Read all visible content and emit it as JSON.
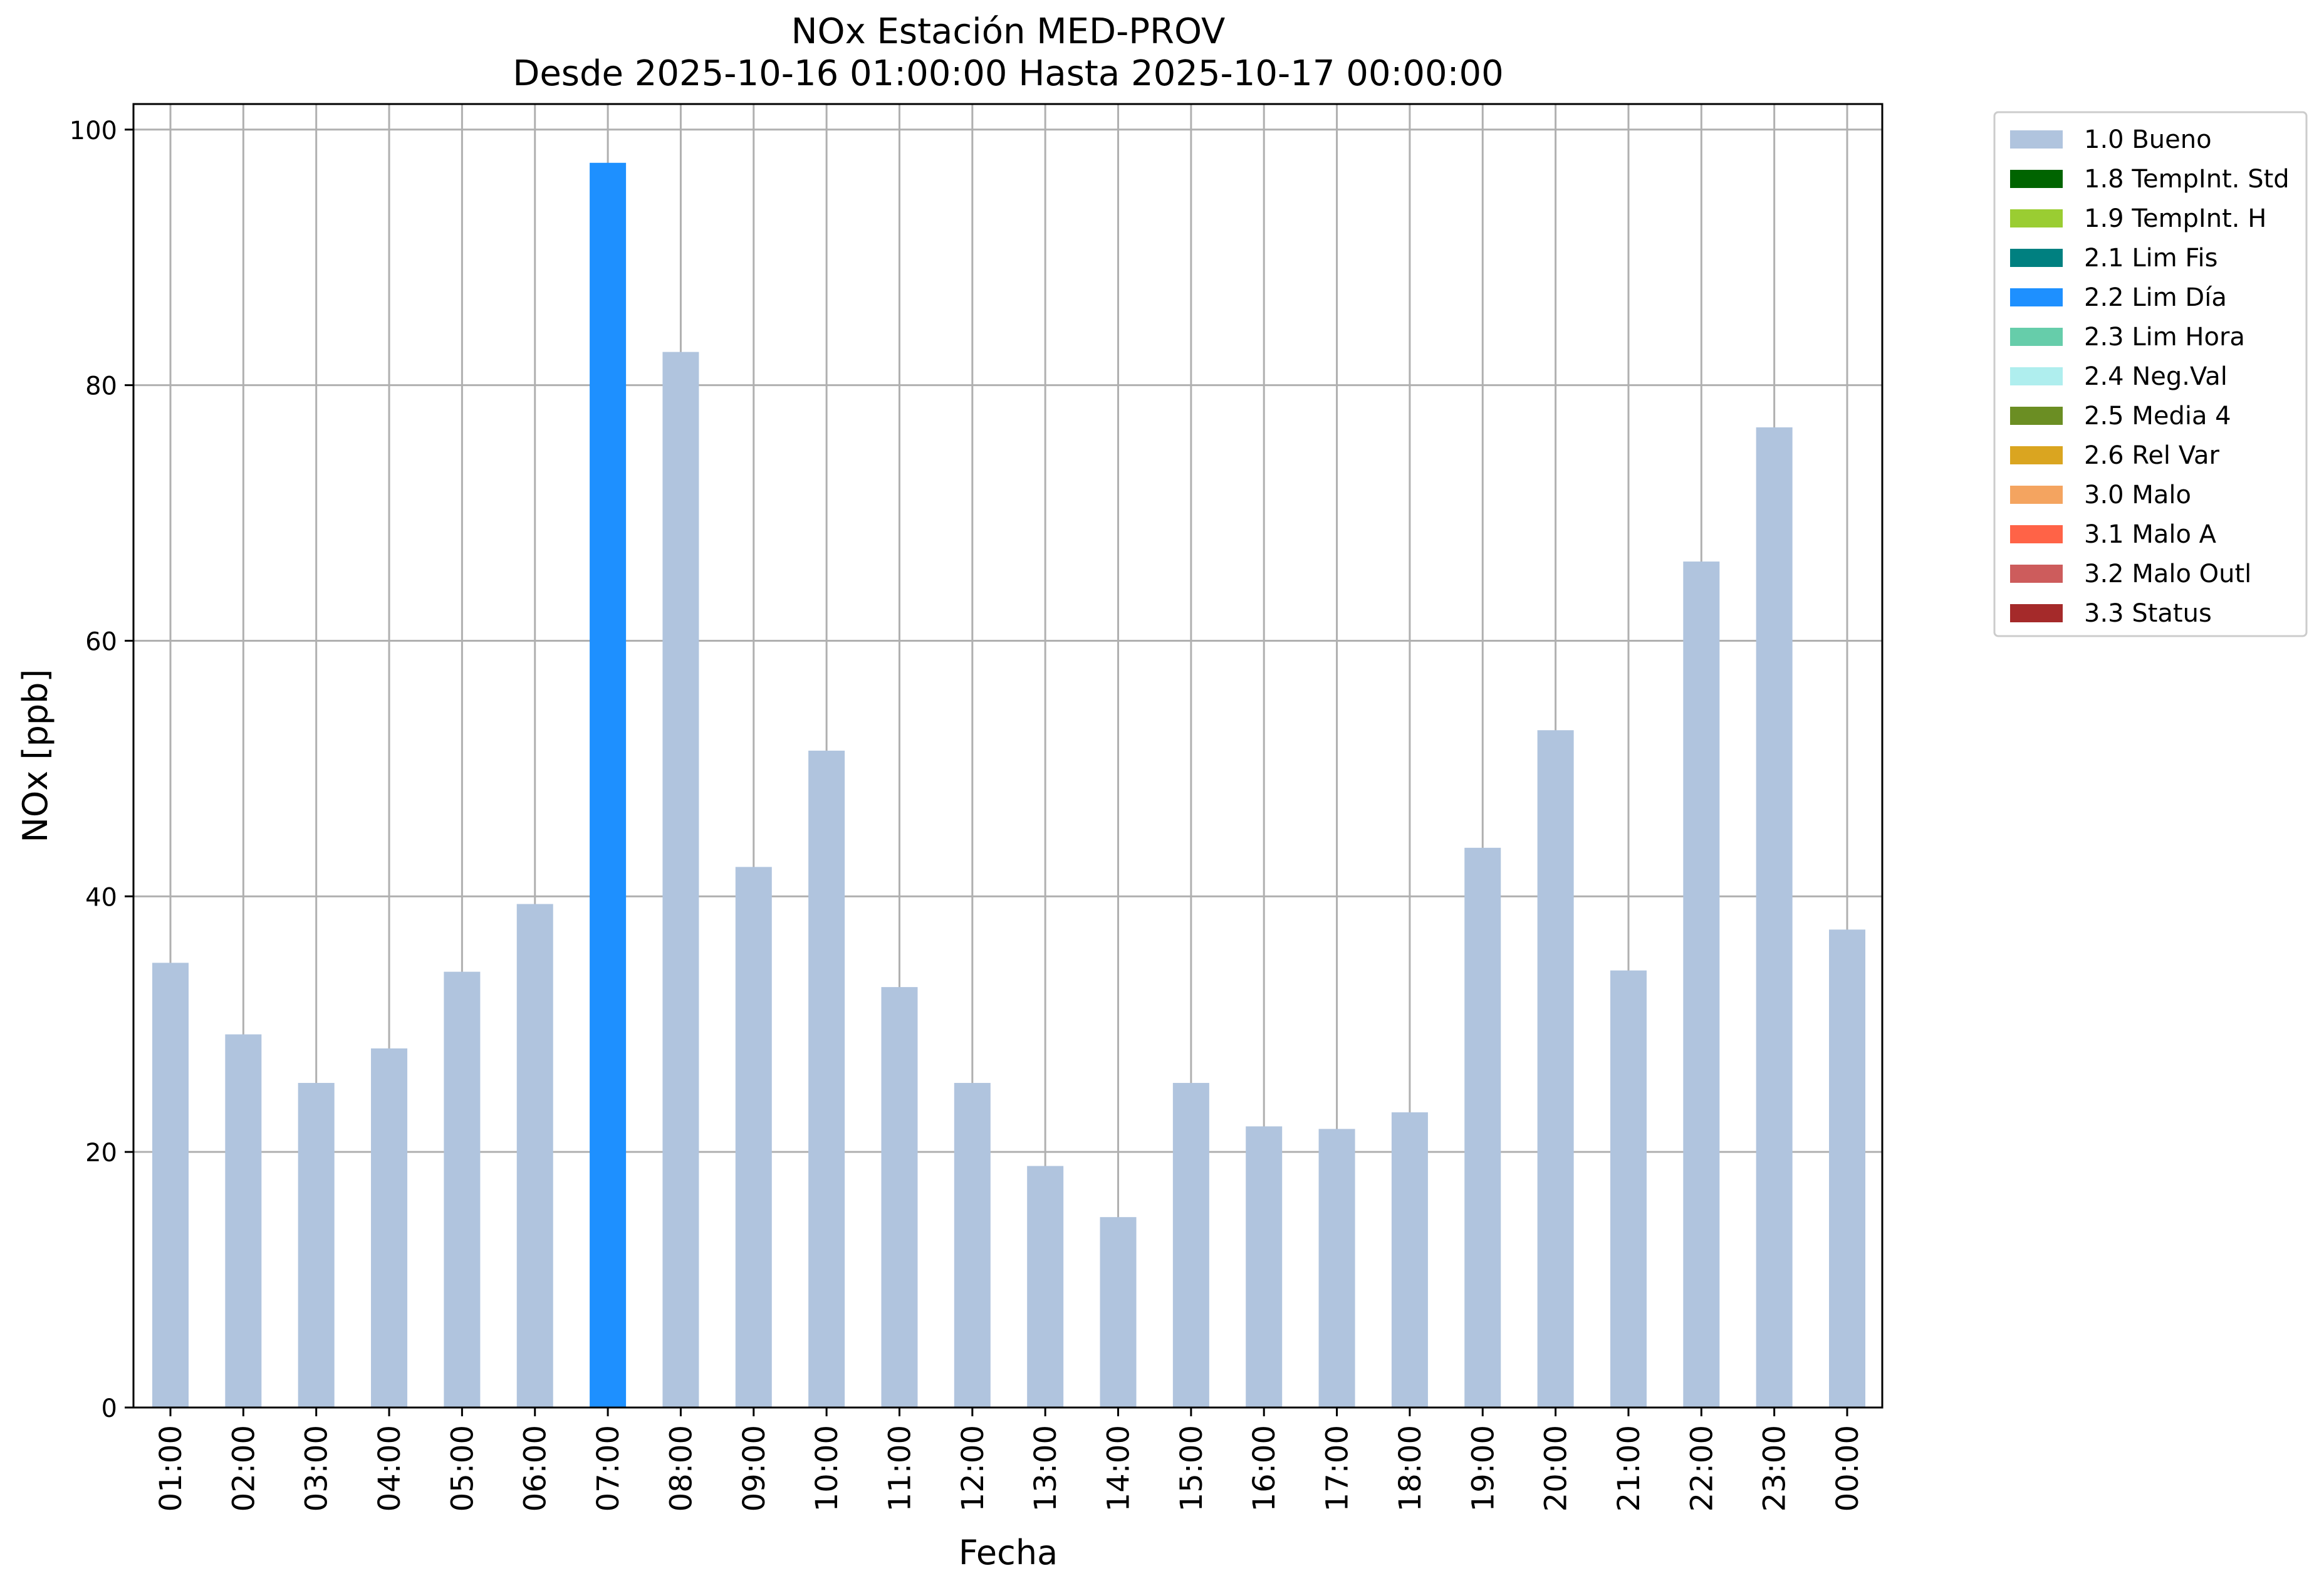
{
  "chart_data": {
    "type": "bar",
    "title": "NOx Estación MED-PROV",
    "subtitle": "Desde 2025-10-16 01:00:00 Hasta 2025-10-17 00:00:00",
    "xlabel": "Fecha",
    "ylabel": "NOx [ppb]",
    "ylim": [
      0,
      102
    ],
    "yticks": [
      0,
      20,
      40,
      60,
      80,
      100
    ],
    "grid": true,
    "legend_position": "outside top-right",
    "categories": [
      "01:00",
      "02:00",
      "03:00",
      "04:00",
      "05:00",
      "06:00",
      "07:00",
      "08:00",
      "09:00",
      "10:00",
      "11:00",
      "12:00",
      "13:00",
      "14:00",
      "15:00",
      "16:00",
      "17:00",
      "18:00",
      "19:00",
      "20:00",
      "21:00",
      "22:00",
      "23:00",
      "00:00"
    ],
    "values": [
      34.8,
      29.2,
      25.4,
      28.1,
      34.1,
      39.4,
      97.4,
      82.6,
      42.3,
      51.4,
      32.9,
      25.4,
      18.9,
      14.9,
      25.4,
      22.0,
      21.8,
      23.1,
      43.8,
      53.0,
      34.2,
      66.2,
      76.7,
      37.4
    ],
    "flags": [
      "1.0 Bueno",
      "1.0 Bueno",
      "1.0 Bueno",
      "1.0 Bueno",
      "1.0 Bueno",
      "1.0 Bueno",
      "2.2 Lim Día",
      "1.0 Bueno",
      "1.0 Bueno",
      "1.0 Bueno",
      "1.0 Bueno",
      "1.0 Bueno",
      "1.0 Bueno",
      "1.0 Bueno",
      "1.0 Bueno",
      "1.0 Bueno",
      "1.0 Bueno",
      "1.0 Bueno",
      "1.0 Bueno",
      "1.0 Bueno",
      "1.0 Bueno",
      "1.0 Bueno",
      "1.0 Bueno",
      "1.0 Bueno"
    ],
    "legend": [
      {
        "name": "1.0 Bueno",
        "color": "#b0c4de"
      },
      {
        "name": "1.8 TempInt. Std",
        "color": "#006400"
      },
      {
        "name": "1.9 TempInt. H",
        "color": "#9acd32"
      },
      {
        "name": "2.1 Lim Fis",
        "color": "#008080"
      },
      {
        "name": "2.2 Lim Día",
        "color": "#1e90ff"
      },
      {
        "name": "2.3 Lim Hora",
        "color": "#66cdaa"
      },
      {
        "name": "2.4 Neg.Val",
        "color": "#afeeee"
      },
      {
        "name": "2.5 Media 4",
        "color": "#6b8e23"
      },
      {
        "name": "2.6 Rel Var",
        "color": "#daa520"
      },
      {
        "name": "3.0 Malo",
        "color": "#f4a460"
      },
      {
        "name": "3.1 Malo A",
        "color": "#ff6347"
      },
      {
        "name": "3.2 Malo Outl",
        "color": "#cd5c5c"
      },
      {
        "name": "3.3 Status",
        "color": "#a52a2a"
      }
    ]
  }
}
